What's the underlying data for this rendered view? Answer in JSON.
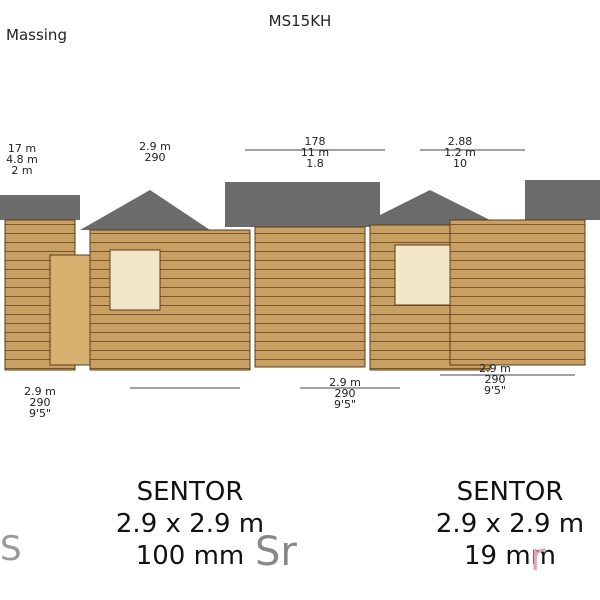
{
  "header": {
    "left": "Massing",
    "center": "MS15KH"
  },
  "dimensions": {
    "top_left": [
      "17 m",
      "4.8 m",
      "2 m"
    ],
    "top_mid": [
      "2.9 m",
      "290"
    ],
    "top_center": [
      "178",
      "11 m",
      "1.8"
    ],
    "top_right": [
      "2.88",
      "1.2 m",
      "10"
    ],
    "bottom_left": [
      "2.9 m",
      "290",
      "9'5\""
    ],
    "bottom_center": [
      "2.9 m",
      "290",
      "9'5\""
    ],
    "bottom_right": [
      "2.9 m",
      "290",
      "9'5\""
    ]
  },
  "products": [
    {
      "name": "SENTOR",
      "size": "2.9 x 2.9 m",
      "thickness": "100 mm"
    },
    {
      "name": "SENTOR",
      "size": "2.9 x 2.9 m",
      "thickness": "19 mm"
    }
  ]
}
